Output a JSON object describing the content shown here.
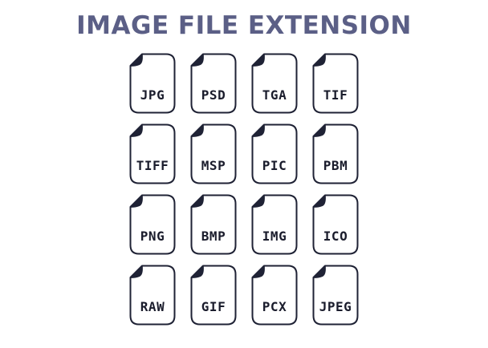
{
  "title": "IMAGE FILE EXTENSION",
  "colors": {
    "title": "#5b5f86",
    "outline": "#1f2235",
    "fold": "#1f2235",
    "text": "#1a1c2c",
    "background": "#ffffff"
  },
  "icon": "document-page-with-folded-corner-icon",
  "extensions": [
    "JPG",
    "PSD",
    "TGA",
    "TIF",
    "TIFF",
    "MSP",
    "PIC",
    "PBM",
    "PNG",
    "BMP",
    "IMG",
    "ICO",
    "RAW",
    "GIF",
    "PCX",
    "JPEG"
  ]
}
